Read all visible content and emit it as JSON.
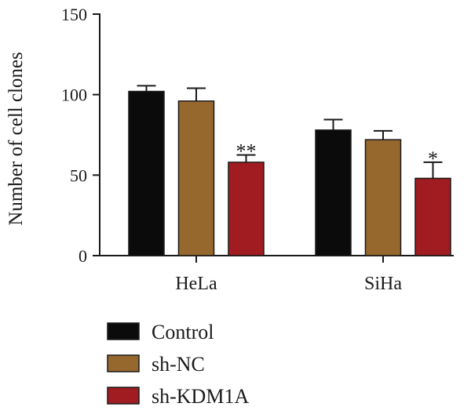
{
  "chart_data": {
    "type": "bar",
    "ylabel": "Number of cell clones",
    "ylim": [
      0,
      150
    ],
    "yticks": [
      0,
      50,
      100,
      150
    ],
    "categories": [
      "HeLa",
      "SiHa"
    ],
    "series": [
      {
        "name": "Control",
        "color": "#0b0b0b",
        "values": [
          102,
          78
        ],
        "errors": [
          3.5,
          6.5
        ]
      },
      {
        "name": "sh-NC",
        "color": "#96682e",
        "values": [
          96,
          72
        ],
        "errors": [
          8,
          5.5
        ]
      },
      {
        "name": "sh-KDM1A",
        "color": "#a01c20",
        "values": [
          58,
          48
        ],
        "errors": [
          4.5,
          10
        ]
      }
    ],
    "annotations": [
      {
        "category": "HeLa",
        "series": "sh-KDM1A",
        "text": "**"
      },
      {
        "category": "SiHa",
        "series": "sh-KDM1A",
        "text": "*"
      }
    ],
    "legend_position": "bottom-left",
    "grid": false
  }
}
